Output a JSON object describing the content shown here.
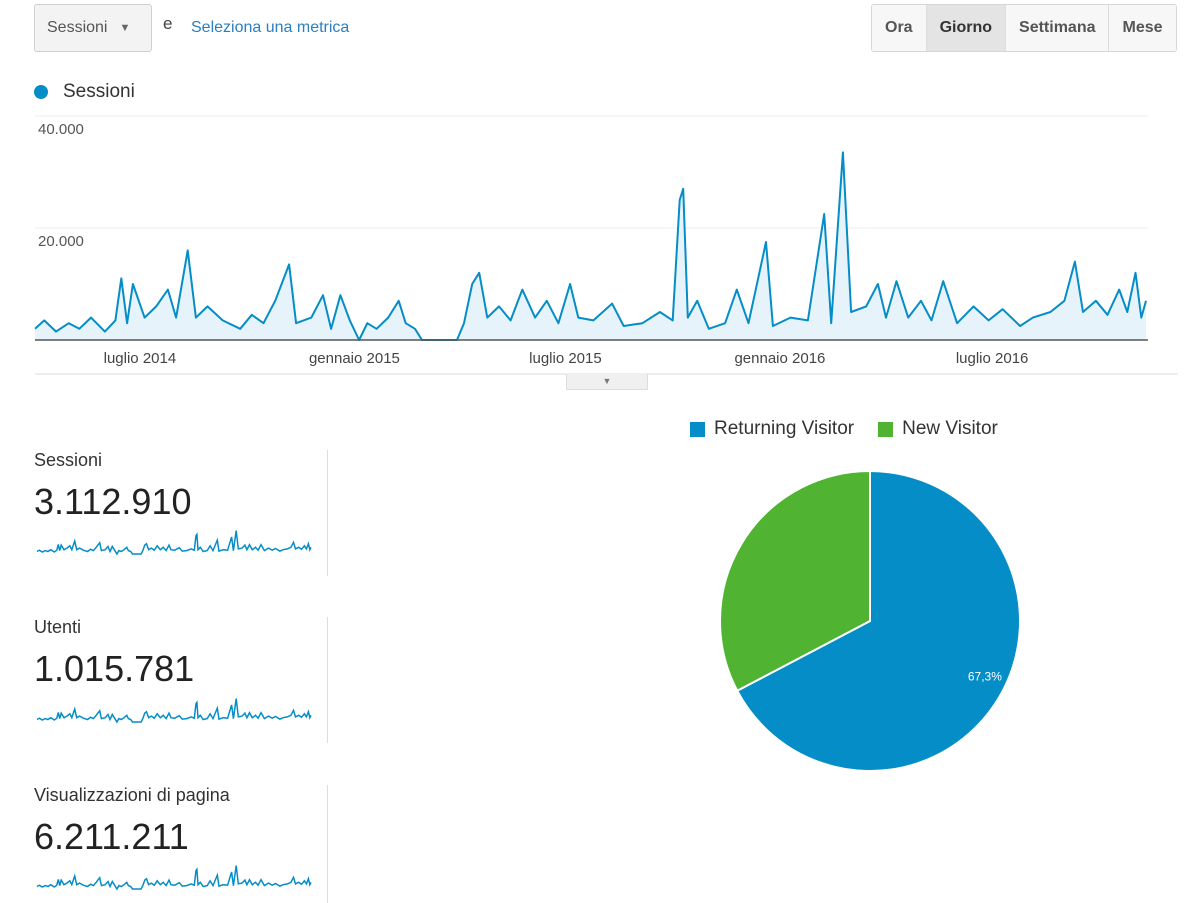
{
  "toolbar": {
    "metric_select": "Sessioni",
    "and_text": "e",
    "select_metric_link": "Seleziona una metrica",
    "period_buttons": [
      {
        "label": "Ora",
        "active": false
      },
      {
        "label": "Giorno",
        "active": true
      },
      {
        "label": "Settimana",
        "active": false
      },
      {
        "label": "Mese",
        "active": false
      }
    ]
  },
  "colors": {
    "sessions": "#058dc7",
    "returning": "#058dc7",
    "new": "#50b432"
  },
  "chart_data": [
    {
      "type": "line",
      "series": [
        {
          "name": "Sessioni",
          "color": "#058dc7"
        }
      ],
      "y_ticks": [
        "20.000",
        "40.000"
      ],
      "ylim": [
        0,
        40000
      ],
      "x_ticks": [
        {
          "label": "luglio 2014",
          "date": "2014-07-01"
        },
        {
          "label": "gennaio 2015",
          "date": "2015-01-01"
        },
        {
          "label": "luglio 2015",
          "date": "2015-07-01"
        },
        {
          "label": "gennaio 2016",
          "date": "2016-01-01"
        },
        {
          "label": "luglio 2016",
          "date": "2016-07-01"
        }
      ],
      "xlim": [
        "2014-04-02",
        "2016-11-10"
      ],
      "grid": true,
      "points": [
        [
          "2014-04-02",
          2000
        ],
        [
          "2014-04-10",
          3500
        ],
        [
          "2014-04-20",
          1500
        ],
        [
          "2014-05-01",
          3000
        ],
        [
          "2014-05-10",
          2000
        ],
        [
          "2014-05-20",
          4000
        ],
        [
          "2014-06-01",
          1500
        ],
        [
          "2014-06-10",
          3500
        ],
        [
          "2014-06-15",
          11000
        ],
        [
          "2014-06-20",
          3000
        ],
        [
          "2014-06-25",
          10000
        ],
        [
          "2014-07-05",
          4000
        ],
        [
          "2014-07-15",
          6000
        ],
        [
          "2014-07-25",
          9000
        ],
        [
          "2014-08-01",
          4000
        ],
        [
          "2014-08-11",
          16000
        ],
        [
          "2014-08-18",
          4000
        ],
        [
          "2014-08-28",
          6000
        ],
        [
          "2014-09-10",
          3500
        ],
        [
          "2014-09-25",
          2000
        ],
        [
          "2014-10-05",
          4500
        ],
        [
          "2014-10-15",
          3000
        ],
        [
          "2014-10-25",
          7000
        ],
        [
          "2014-11-06",
          13500
        ],
        [
          "2014-11-12",
          3000
        ],
        [
          "2014-11-25",
          4000
        ],
        [
          "2014-12-05",
          8000
        ],
        [
          "2014-12-12",
          2000
        ],
        [
          "2014-12-20",
          8000
        ],
        [
          "2014-12-28",
          3500
        ],
        [
          "2015-01-05",
          0
        ],
        [
          "2015-01-12",
          3000
        ],
        [
          "2015-01-20",
          2000
        ],
        [
          "2015-01-30",
          4000
        ],
        [
          "2015-02-08",
          7000
        ],
        [
          "2015-02-14",
          3000
        ],
        [
          "2015-02-22",
          2000
        ],
        [
          "2015-02-28",
          0
        ],
        [
          "2015-03-30",
          0
        ],
        [
          "2015-04-05",
          3000
        ],
        [
          "2015-04-12",
          10000
        ],
        [
          "2015-04-18",
          12000
        ],
        [
          "2015-04-25",
          4000
        ],
        [
          "2015-05-05",
          6000
        ],
        [
          "2015-05-15",
          3500
        ],
        [
          "2015-05-25",
          9000
        ],
        [
          "2015-06-05",
          4000
        ],
        [
          "2015-06-15",
          7000
        ],
        [
          "2015-06-25",
          3000
        ],
        [
          "2015-07-05",
          10000
        ],
        [
          "2015-07-12",
          4000
        ],
        [
          "2015-07-25",
          3500
        ],
        [
          "2015-08-10",
          6500
        ],
        [
          "2015-08-20",
          2500
        ],
        [
          "2015-09-05",
          3000
        ],
        [
          "2015-09-20",
          5000
        ],
        [
          "2015-10-01",
          3500
        ],
        [
          "2015-10-07",
          25000
        ],
        [
          "2015-10-10",
          27000
        ],
        [
          "2015-10-14",
          4000
        ],
        [
          "2015-10-22",
          7000
        ],
        [
          "2015-11-01",
          2000
        ],
        [
          "2015-11-15",
          3000
        ],
        [
          "2015-11-25",
          9000
        ],
        [
          "2015-12-05",
          3000
        ],
        [
          "2015-12-20",
          17500
        ],
        [
          "2015-12-26",
          2500
        ],
        [
          "2016-01-10",
          4000
        ],
        [
          "2016-01-25",
          3500
        ],
        [
          "2016-02-08",
          22500
        ],
        [
          "2016-02-14",
          3000
        ],
        [
          "2016-02-24",
          33500
        ],
        [
          "2016-03-02",
          5000
        ],
        [
          "2016-03-15",
          6000
        ],
        [
          "2016-03-25",
          10000
        ],
        [
          "2016-04-01",
          4000
        ],
        [
          "2016-04-10",
          10500
        ],
        [
          "2016-04-20",
          4000
        ],
        [
          "2016-05-01",
          7000
        ],
        [
          "2016-05-10",
          3500
        ],
        [
          "2016-05-20",
          10500
        ],
        [
          "2016-06-01",
          3000
        ],
        [
          "2016-06-15",
          6000
        ],
        [
          "2016-06-28",
          3500
        ],
        [
          "2016-07-10",
          5500
        ],
        [
          "2016-07-25",
          2500
        ],
        [
          "2016-08-05",
          4000
        ],
        [
          "2016-08-20",
          5000
        ],
        [
          "2016-09-01",
          7000
        ],
        [
          "2016-09-10",
          14000
        ],
        [
          "2016-09-17",
          5000
        ],
        [
          "2016-09-28",
          7000
        ],
        [
          "2016-10-08",
          4500
        ],
        [
          "2016-10-18",
          9000
        ],
        [
          "2016-10-25",
          5000
        ],
        [
          "2016-11-01",
          12000
        ],
        [
          "2016-11-06",
          4000
        ],
        [
          "2016-11-10",
          7000
        ]
      ]
    },
    {
      "type": "pie",
      "slices": [
        {
          "name": "Returning Visitor",
          "value": 67.3,
          "label": "67,3%",
          "color": "#058dc7"
        },
        {
          "name": "New Visitor",
          "value": 32.7,
          "label": "32,7%",
          "color": "#50b432"
        }
      ],
      "legend": "top"
    }
  ],
  "legend_main": "Sessioni",
  "metrics": [
    {
      "label": "Sessioni",
      "value": "3.112.910"
    },
    {
      "label": "Utenti",
      "value": "1.015.781"
    },
    {
      "label": "Visualizzazioni di pagina",
      "value": "6.211.211"
    }
  ]
}
